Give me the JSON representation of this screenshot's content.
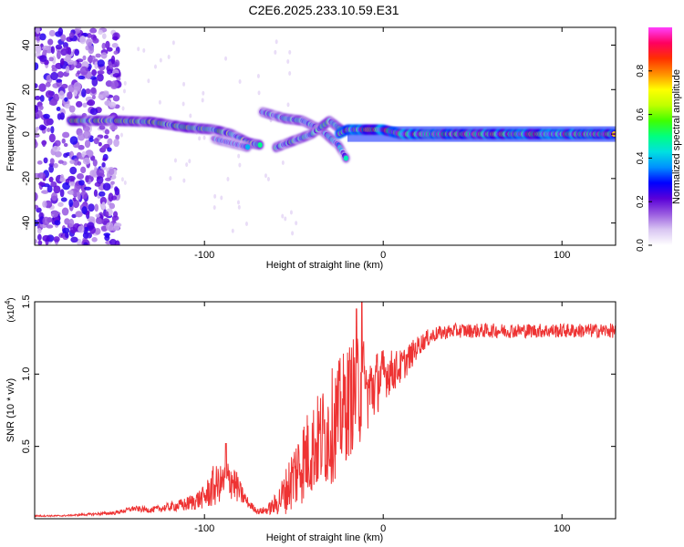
{
  "figure": {
    "title": "C2E6.2025.233.10.59.E31"
  },
  "chart_data": [
    {
      "type": "heatmap",
      "name": "spectrogram",
      "xlabel": "Height of straight line (km)",
      "ylabel": "Frequency (Hz)",
      "xlim": [
        -195,
        130
      ],
      "ylim": [
        -50,
        48
      ],
      "x_ticks": [
        -100,
        0,
        100
      ],
      "x_tick_labels": [
        "-100",
        "0",
        "100"
      ],
      "y_ticks": [
        -40,
        -20,
        0,
        20,
        40
      ],
      "y_tick_labels": [
        "-40",
        "-20",
        "0",
        "20",
        "40"
      ],
      "colorbar": {
        "label": "Normalized spectral amplitude",
        "range": [
          0,
          1
        ],
        "ticks": [
          0.0,
          0.2,
          0.4,
          0.6,
          0.8
        ],
        "tick_labels": [
          "0.0",
          "0.2",
          "0.4",
          "0.6",
          "0.8"
        ],
        "colors": [
          "#ffffff",
          "#d9c6f2",
          "#9a5ce0",
          "#5a00d8",
          "#0000ff",
          "#0090ff",
          "#00e0e0",
          "#00ff80",
          "#40ff00",
          "#c0ff00",
          "#ffff00",
          "#ff9000",
          "#ff3000",
          "#ff0060",
          "#ff40ff"
        ]
      },
      "bands": [
        {
          "name": "noise-region",
          "x_range": [
            -195,
            -148
          ],
          "y_range": [
            -50,
            48
          ],
          "amplitude": 0.12
        },
        {
          "name": "main-band",
          "points": [
            [
              -175,
              6
            ],
            [
              -150,
              6
            ],
            [
              -130,
              5.5
            ],
            [
              -110,
              3
            ],
            [
              -95,
              2
            ],
            [
              -85,
              0
            ],
            [
              -75,
              -4
            ],
            [
              -68,
              -5
            ]
          ],
          "amplitude": 0.45
        },
        {
          "name": "lower-branch",
          "points": [
            [
              -95,
              -2
            ],
            [
              -85,
              -4
            ],
            [
              -75,
              -6
            ]
          ],
          "amplitude": 0.3
        },
        {
          "name": "upper-branch",
          "points": [
            [
              -68,
              10
            ],
            [
              -55,
              7
            ],
            [
              -45,
              6
            ],
            [
              -35,
              2
            ],
            [
              -25,
              -5
            ],
            [
              -20,
              -12
            ]
          ],
          "amplitude": 0.35
        },
        {
          "name": "crossing-branch",
          "points": [
            [
              -60,
              -6
            ],
            [
              -50,
              -3
            ],
            [
              -40,
              0
            ],
            [
              -30,
              6
            ],
            [
              -22,
              1
            ]
          ],
          "amplitude": 0.4
        },
        {
          "name": "steady-line",
          "points": [
            [
              -25,
              0
            ],
            [
              -20,
              2
            ],
            [
              0,
              2
            ],
            [
              10,
              0
            ],
            [
              130,
              0
            ]
          ],
          "amplitude": 0.85
        }
      ]
    },
    {
      "type": "line",
      "name": "snr",
      "xlabel": "Height of straight line (km)",
      "ylabel": "SNR (10 * v/v)",
      "y_scale_label": "(x10",
      "y_scale_exponent": "4",
      "y_scale_close": ")",
      "xlim": [
        -195,
        130
      ],
      "ylim": [
        0,
        1.5
      ],
      "x_ticks": [
        -100,
        0,
        100
      ],
      "x_tick_labels": [
        "-100",
        "0",
        "100"
      ],
      "y_ticks": [
        0.5,
        1.0,
        1.5
      ],
      "y_tick_labels": [
        "0.5",
        "1.0",
        "1.5"
      ],
      "color": "#ee3333",
      "series": [
        {
          "name": "SNR",
          "x": [
            -195,
            -180,
            -165,
            -150,
            -140,
            -130,
            -120,
            -110,
            -100,
            -95,
            -90,
            -85,
            -80,
            -75,
            -70,
            -65,
            -60,
            -55,
            -50,
            -45,
            -40,
            -35,
            -30,
            -25,
            -20,
            -15,
            -12,
            -10,
            -5,
            0,
            5,
            10,
            15,
            20,
            25,
            30,
            40,
            50,
            60,
            70,
            80,
            90,
            100,
            110,
            120,
            130
          ],
          "y": [
            0.02,
            0.02,
            0.03,
            0.04,
            0.07,
            0.06,
            0.08,
            0.1,
            0.15,
            0.22,
            0.25,
            0.28,
            0.18,
            0.1,
            0.05,
            0.06,
            0.1,
            0.18,
            0.3,
            0.4,
            0.48,
            0.55,
            0.62,
            0.7,
            0.8,
            0.9,
            0.95,
            0.85,
            0.92,
            1.0,
            1.02,
            1.05,
            1.12,
            1.2,
            1.25,
            1.28,
            1.3,
            1.3,
            1.3,
            1.3,
            1.3,
            1.3,
            1.3,
            1.3,
            1.3,
            1.3
          ],
          "noise": [
            0.005,
            0.005,
            0.008,
            0.012,
            0.02,
            0.02,
            0.03,
            0.05,
            0.08,
            0.15,
            0.12,
            0.15,
            0.08,
            0.03,
            0.02,
            0.03,
            0.08,
            0.15,
            0.25,
            0.3,
            0.32,
            0.35,
            0.4,
            0.4,
            0.4,
            0.4,
            0.45,
            0.3,
            0.25,
            0.18,
            0.15,
            0.12,
            0.1,
            0.07,
            0.06,
            0.05,
            0.05,
            0.05,
            0.05,
            0.05,
            0.05,
            0.05,
            0.05,
            0.05,
            0.05,
            0.05
          ]
        }
      ],
      "spikes": [
        {
          "x": -88,
          "y": 0.52
        },
        {
          "x": -15,
          "y": 1.45
        },
        {
          "x": -12,
          "y": 1.5
        },
        {
          "x": -10,
          "y": 0.9
        }
      ]
    }
  ]
}
